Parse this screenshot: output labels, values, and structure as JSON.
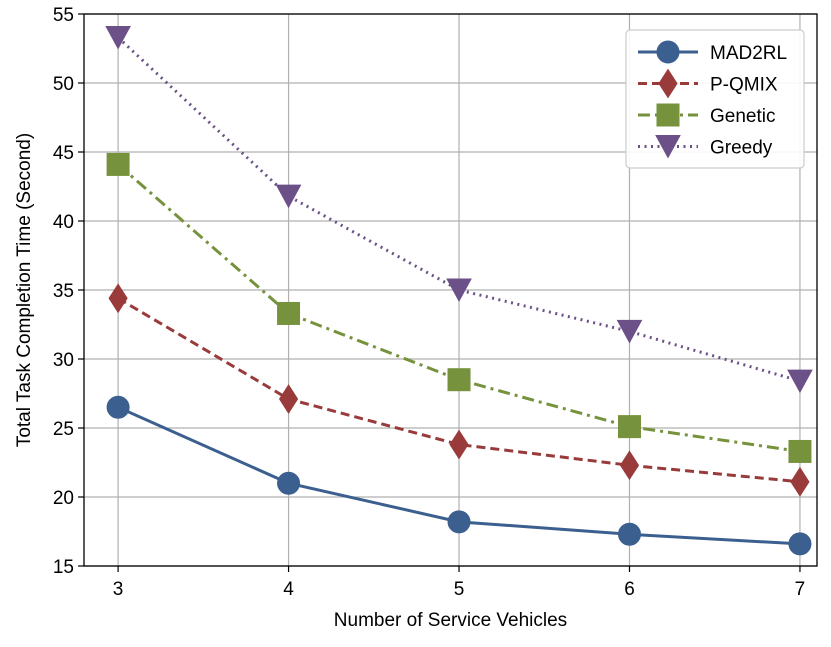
{
  "chart_data": {
    "type": "line",
    "xlabel": "Number of Service Vehicles",
    "ylabel": "Total Task Completion Time (Second)",
    "x": [
      3,
      4,
      5,
      6,
      7
    ],
    "xlim": [
      2.8,
      7.1
    ],
    "ylim": [
      15,
      55
    ],
    "xticks": [
      3,
      4,
      5,
      6,
      7
    ],
    "yticks": [
      15,
      20,
      25,
      30,
      35,
      40,
      45,
      50,
      55
    ],
    "grid": true,
    "legend_position": "top-right",
    "series": [
      {
        "name": "MAD2RL",
        "values": [
          26.5,
          21.0,
          18.2,
          17.3,
          16.6
        ],
        "color": "#3b5f8f",
        "marker": "circle",
        "linestyle": "solid"
      },
      {
        "name": "P-QMIX",
        "values": [
          34.4,
          27.1,
          23.8,
          22.3,
          21.1
        ],
        "color": "#9a3b3b",
        "marker": "diamond",
        "linestyle": "dashed"
      },
      {
        "name": "Genetic",
        "values": [
          44.1,
          33.3,
          28.5,
          25.1,
          23.3
        ],
        "color": "#76923c",
        "marker": "square",
        "linestyle": "dashdot"
      },
      {
        "name": "Greedy",
        "values": [
          53.3,
          41.8,
          35.0,
          32.0,
          28.4
        ],
        "color": "#6b5188",
        "marker": "triangle-down",
        "linestyle": "dotted"
      }
    ]
  }
}
